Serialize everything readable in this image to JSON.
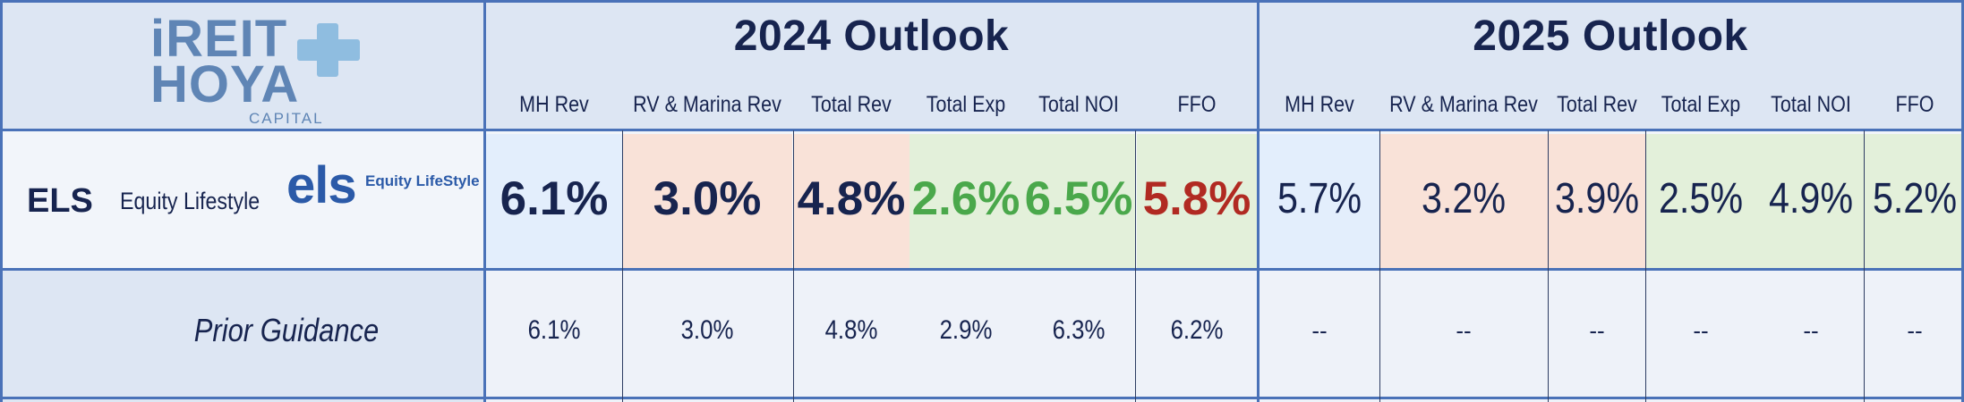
{
  "logo": {
    "line1": "iREIT",
    "line2": "HOYA",
    "line3": "CAPITAL"
  },
  "company_logo": {
    "mark": "els",
    "name": "Equity LifeStyle"
  },
  "headers": {
    "outlook_2024": "2024 Outlook",
    "outlook_2025": "2025 Outlook",
    "columns": [
      "MH Rev",
      "RV & Marina Rev",
      "Total Rev",
      "Total Exp",
      "Total NOI",
      "FFO"
    ]
  },
  "row_els": {
    "ticker": "ELS",
    "name": "Equity Lifestyle",
    "values_2024": [
      "6.1%",
      "3.0%",
      "4.8%",
      "2.6%",
      "6.5%",
      "5.8%"
    ],
    "values_2025": [
      "5.7%",
      "3.2%",
      "3.9%",
      "2.5%",
      "4.9%",
      "5.2%"
    ]
  },
  "row_prior": {
    "label": "Prior Guidance",
    "values_2024": [
      "6.1%",
      "3.0%",
      "4.8%",
      "2.9%",
      "6.3%",
      "6.2%"
    ],
    "values_2025": [
      "--",
      "--",
      "--",
      "--",
      "--",
      "--"
    ]
  },
  "colors": {
    "navy": "#17244f",
    "grid_blue": "#4a72b8",
    "green_text": "#4aa84b",
    "red_text": "#b12a22",
    "cell_blue": "#e3eefc",
    "cell_peach": "#f9e2d8",
    "cell_green": "#e3f0da"
  }
}
